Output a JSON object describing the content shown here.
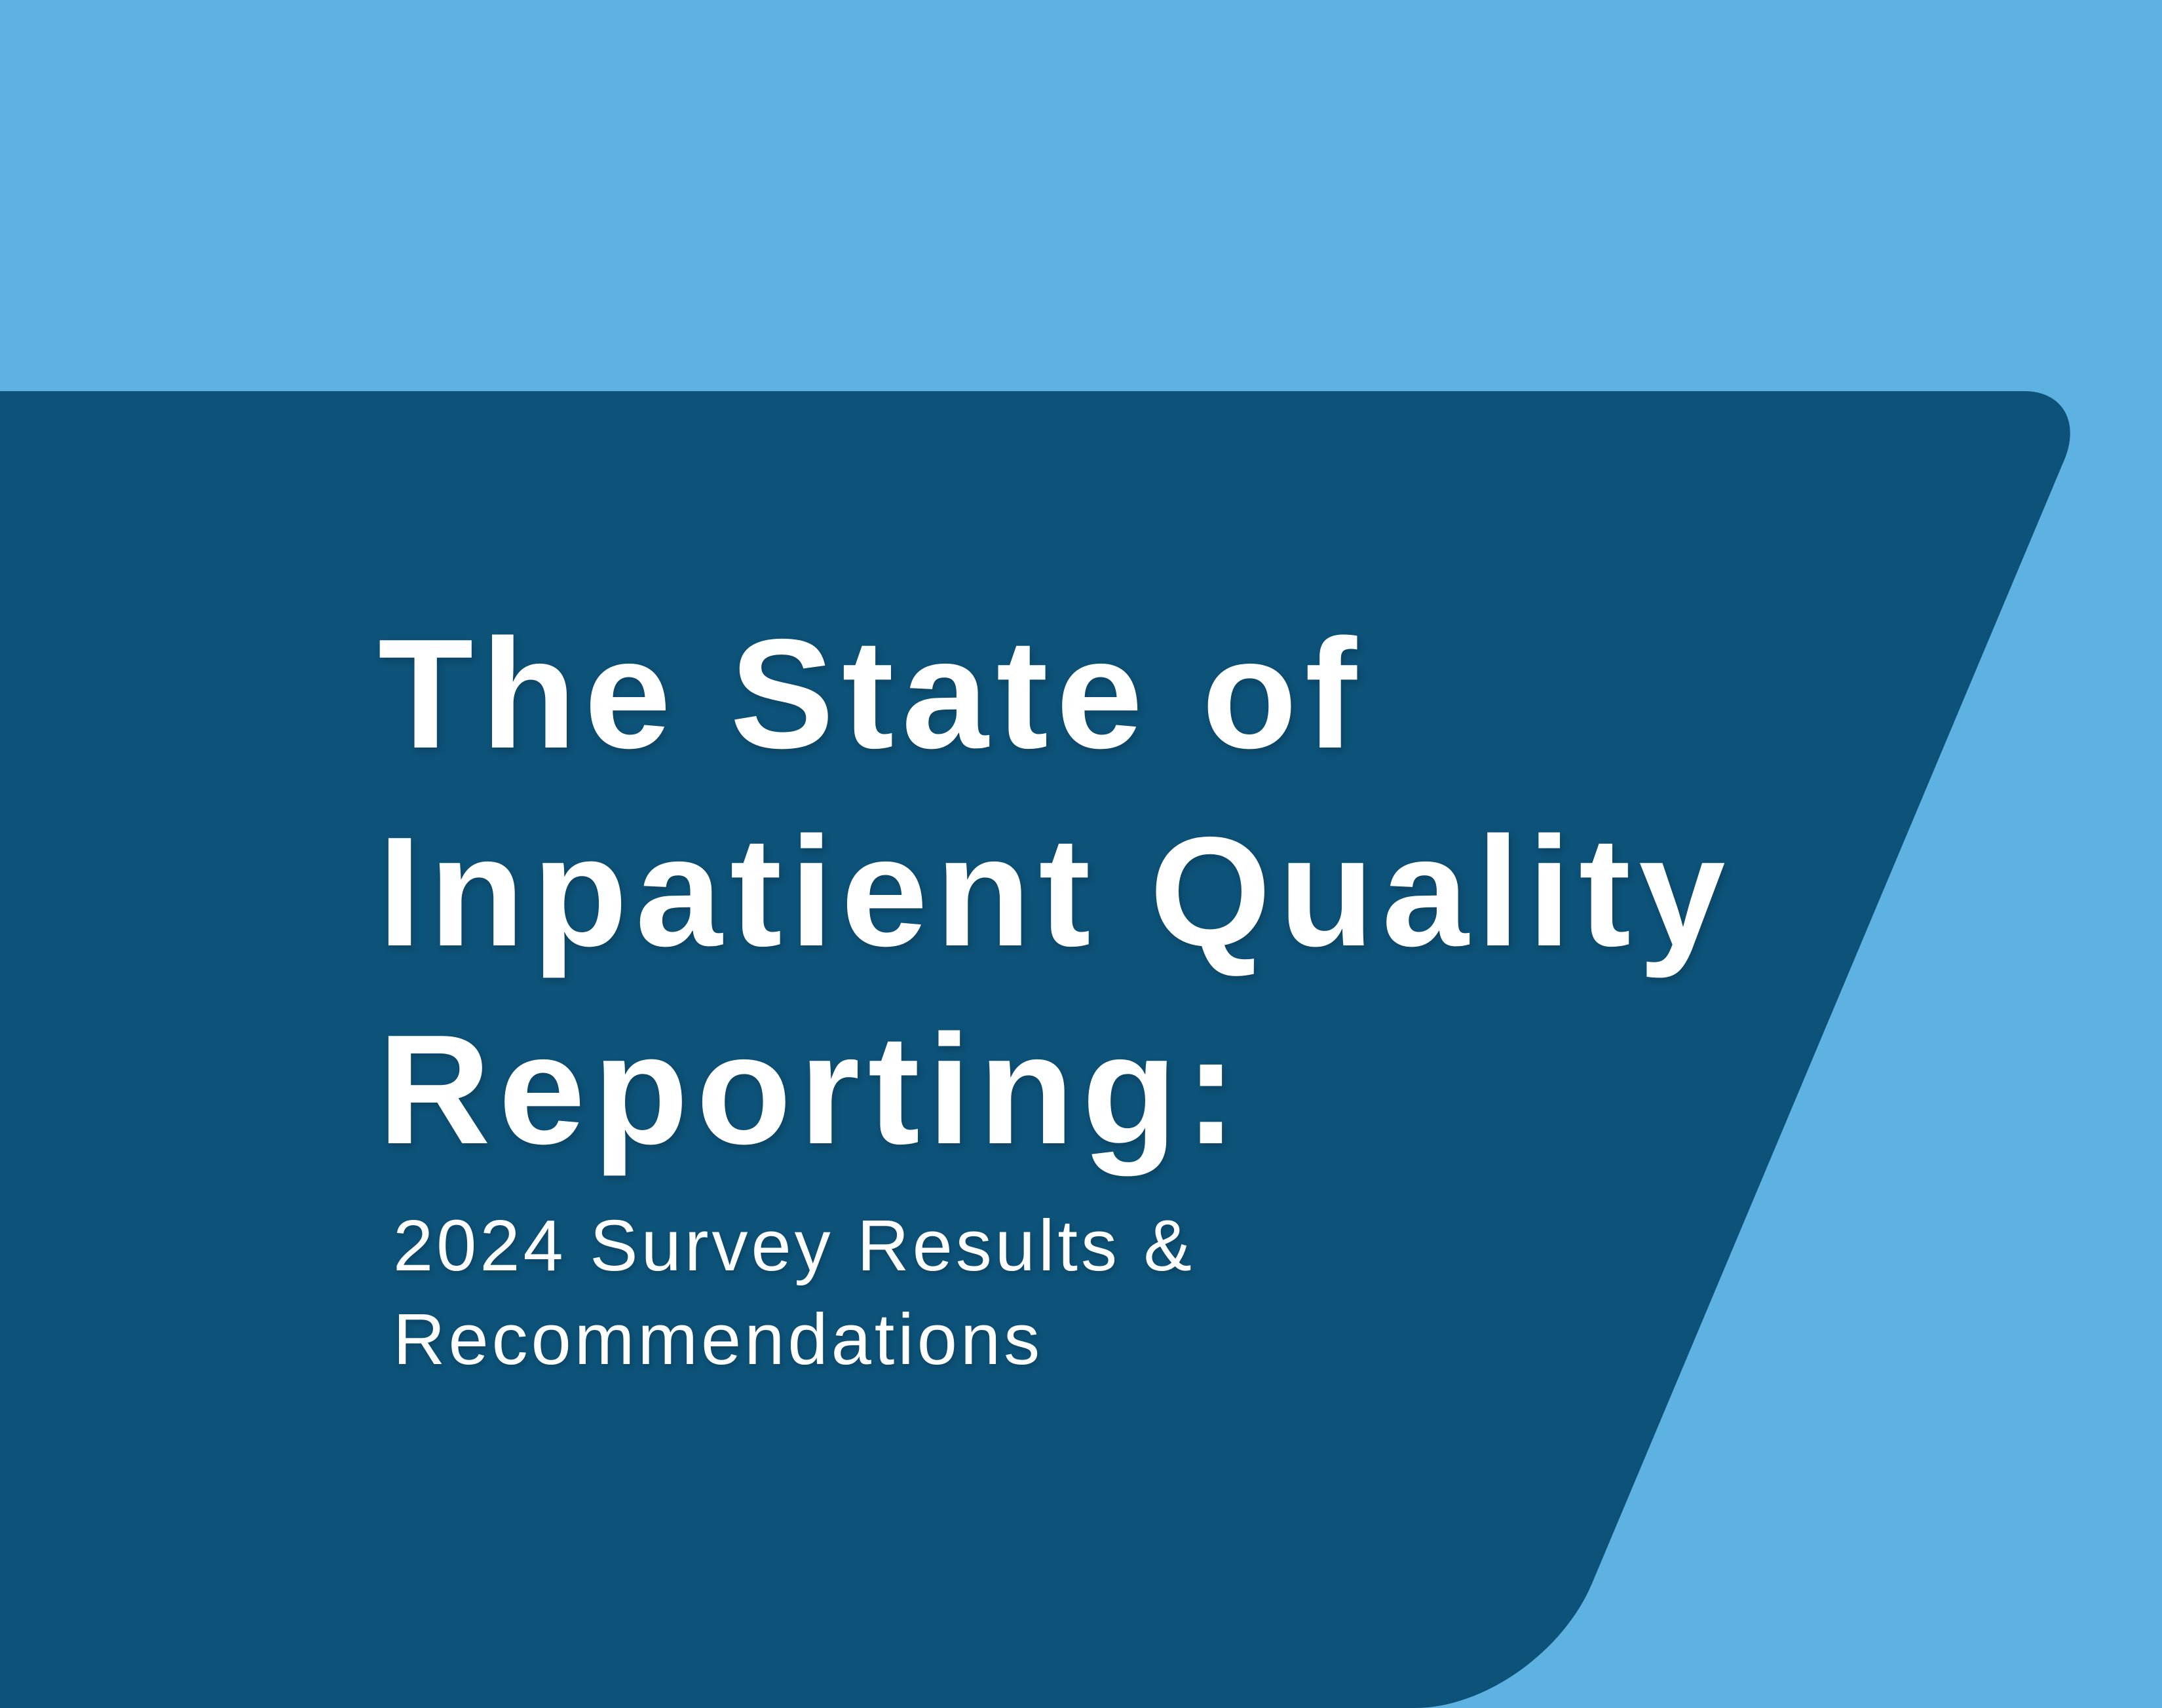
{
  "page": {
    "title_lines": [
      "The State of",
      "Inpatient Quality",
      "Reporting:"
    ],
    "subtitle_lines": [
      "2024 Survey Results &",
      "Recommendations"
    ],
    "colors": {
      "background_light_blue": "#5eb2e2",
      "panel_dark_blue": "#0d5278",
      "text_white": "#ffffff"
    }
  }
}
